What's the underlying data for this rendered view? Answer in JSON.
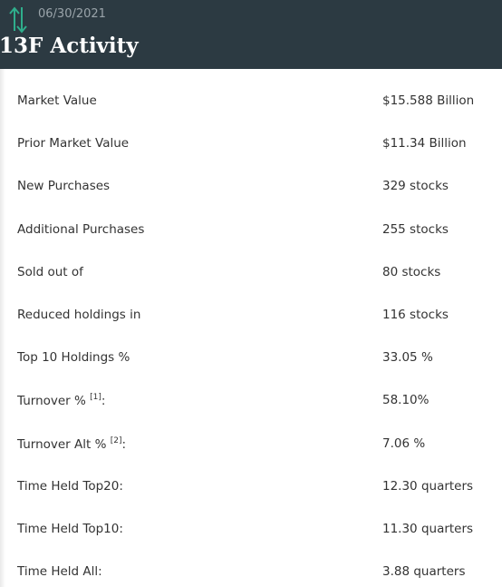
{
  "header": {
    "date": "06/30/2021",
    "title": "13F Activity"
  },
  "rows": [
    {
      "label": "Market Value",
      "value": "$15.588 Billion"
    },
    {
      "label": "Prior Market Value",
      "value": "$11.34 Billion"
    },
    {
      "label": "New Purchases",
      "value": "329 stocks"
    },
    {
      "label": "Additional Purchases",
      "value": "255 stocks"
    },
    {
      "label": "Sold out of",
      "value": "80 stocks"
    },
    {
      "label": "Reduced holdings in",
      "value": "116 stocks"
    },
    {
      "label": "Top 10 Holdings %",
      "value": "33.05 %"
    },
    {
      "label": "Turnover %",
      "note": "[1]",
      "suffix": ":",
      "value": "58.10%"
    },
    {
      "label": "Turnover Alt %",
      "note": "[2]",
      "suffix": ":",
      "value": "7.06 %"
    },
    {
      "label": "Time Held Top20:",
      "value": "12.30 quarters"
    },
    {
      "label": "Time Held Top10:",
      "value": "11.30 quarters"
    },
    {
      "label": "Time Held All:",
      "value": "3.88 quarters"
    }
  ]
}
